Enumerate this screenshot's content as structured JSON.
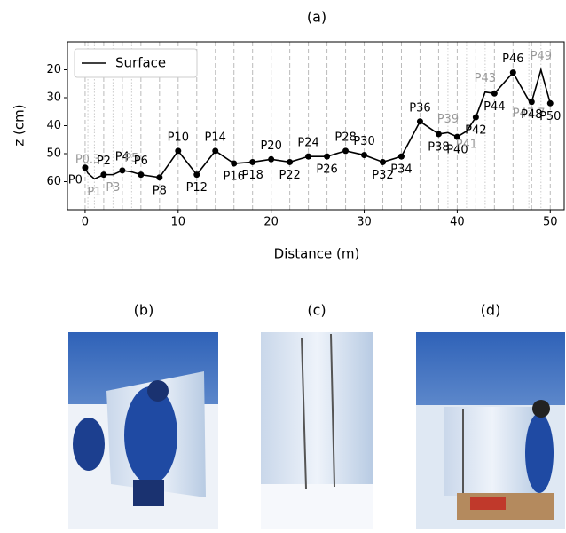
{
  "chart_data": {
    "type": "line",
    "title": "(a)",
    "xlabel": "Distance (m)",
    "ylabel": "z (cm)",
    "xlim": [
      -1.9,
      51.5
    ],
    "ylim": [
      70,
      10
    ],
    "inverted_y": true,
    "xticks": [
      0,
      10,
      20,
      30,
      40,
      50
    ],
    "yticks": [
      20,
      30,
      40,
      50,
      60
    ],
    "legend": "upper left",
    "series": [
      {
        "name": "Surface",
        "color": "#000000",
        "points": [
          {
            "label": "P0",
            "x": 0,
            "z": 55,
            "marker": true
          },
          {
            "label": "P0.3",
            "x": 0.3,
            "z": 57,
            "marker": false
          },
          {
            "label": "P1",
            "x": 1,
            "z": 59,
            "marker": false
          },
          {
            "label": "P2",
            "x": 2,
            "z": 57.5,
            "marker": true
          },
          {
            "label": "P3",
            "x": 3,
            "z": 57.5,
            "marker": false
          },
          {
            "label": "P4",
            "x": 4,
            "z": 56,
            "marker": true
          },
          {
            "label": "P5",
            "x": 5,
            "z": 56.5,
            "marker": false
          },
          {
            "label": "P6",
            "x": 6,
            "z": 57.5,
            "marker": true
          },
          {
            "label": "P8",
            "x": 8,
            "z": 58.5,
            "marker": true
          },
          {
            "label": "P10",
            "x": 10,
            "z": 49,
            "marker": true
          },
          {
            "label": "P12",
            "x": 12,
            "z": 57.5,
            "marker": true
          },
          {
            "label": "P14",
            "x": 14,
            "z": 49,
            "marker": true
          },
          {
            "label": "P16",
            "x": 16,
            "z": 53.5,
            "marker": true
          },
          {
            "label": "P18",
            "x": 18,
            "z": 53,
            "marker": true
          },
          {
            "label": "P20",
            "x": 20,
            "z": 52,
            "marker": true
          },
          {
            "label": "P22",
            "x": 22,
            "z": 53,
            "marker": true
          },
          {
            "label": "P24",
            "x": 24,
            "z": 51,
            "marker": true
          },
          {
            "label": "P26",
            "x": 26,
            "z": 51,
            "marker": true
          },
          {
            "label": "P28",
            "x": 28,
            "z": 49,
            "marker": true
          },
          {
            "label": "P30",
            "x": 30,
            "z": 50.5,
            "marker": true
          },
          {
            "label": "P32",
            "x": 32,
            "z": 53,
            "marker": true
          },
          {
            "label": "P34",
            "x": 34,
            "z": 51,
            "marker": true
          },
          {
            "label": "P36",
            "x": 36,
            "z": 38.5,
            "marker": true
          },
          {
            "label": "P38",
            "x": 38,
            "z": 43,
            "marker": true
          },
          {
            "label": "P39",
            "x": 39,
            "z": 42.5,
            "marker": false
          },
          {
            "label": "P40",
            "x": 40,
            "z": 44,
            "marker": true
          },
          {
            "label": "P41",
            "x": 41,
            "z": 42,
            "marker": false
          },
          {
            "label": "P42",
            "x": 42,
            "z": 37,
            "marker": true
          },
          {
            "label": "P43",
            "x": 43,
            "z": 28,
            "marker": false
          },
          {
            "label": "P44",
            "x": 44,
            "z": 28.5,
            "marker": true
          },
          {
            "label": "P46",
            "x": 46,
            "z": 21,
            "marker": true
          },
          {
            "label": "P47.7",
            "x": 47.7,
            "z": 31,
            "marker": false
          },
          {
            "label": "P48",
            "x": 48,
            "z": 31.5,
            "marker": true
          },
          {
            "label": "P49",
            "x": 49,
            "z": 20,
            "marker": false
          },
          {
            "label": "P50",
            "x": 50,
            "z": 32,
            "marker": true
          }
        ]
      }
    ]
  },
  "photos": [
    "(b)",
    "(c)",
    "(d)"
  ]
}
